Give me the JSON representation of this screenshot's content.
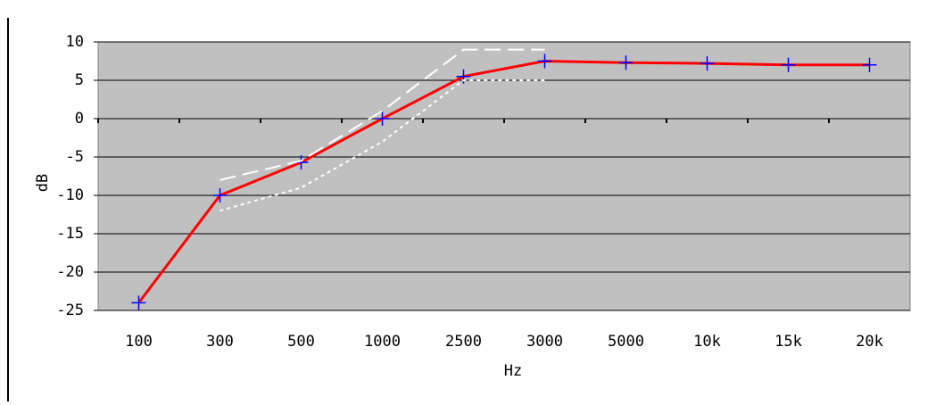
{
  "chart_data": {
    "type": "line",
    "x_label": "Hz",
    "y_label": "dB",
    "categories": [
      "100",
      "300",
      "500",
      "1000",
      "2500",
      "3000",
      "5000",
      "10k",
      "15k",
      "20k"
    ],
    "series": [
      {
        "color": "#ff0000",
        "marker_color": "#0000ff",
        "style": "solid",
        "values": [
          -24,
          -10,
          -5.7,
          0,
          5.5,
          7.5,
          7.3,
          7.2,
          7,
          7
        ]
      },
      {
        "color": "#ffffff",
        "style": "dashed",
        "values": [
          null,
          -8,
          -5.5,
          1,
          9,
          9,
          null,
          null,
          null,
          null
        ]
      },
      {
        "color": "#ffffff",
        "style": "dotted",
        "values": [
          null,
          -12,
          -9,
          -3,
          5,
          5,
          null,
          null,
          null,
          null
        ]
      }
    ],
    "ylim": [
      -25,
      10
    ],
    "yticks": [
      -25,
      -20,
      -15,
      -10,
      -5,
      0,
      5,
      10
    ],
    "grid": true,
    "background": "#c0c0c0"
  }
}
